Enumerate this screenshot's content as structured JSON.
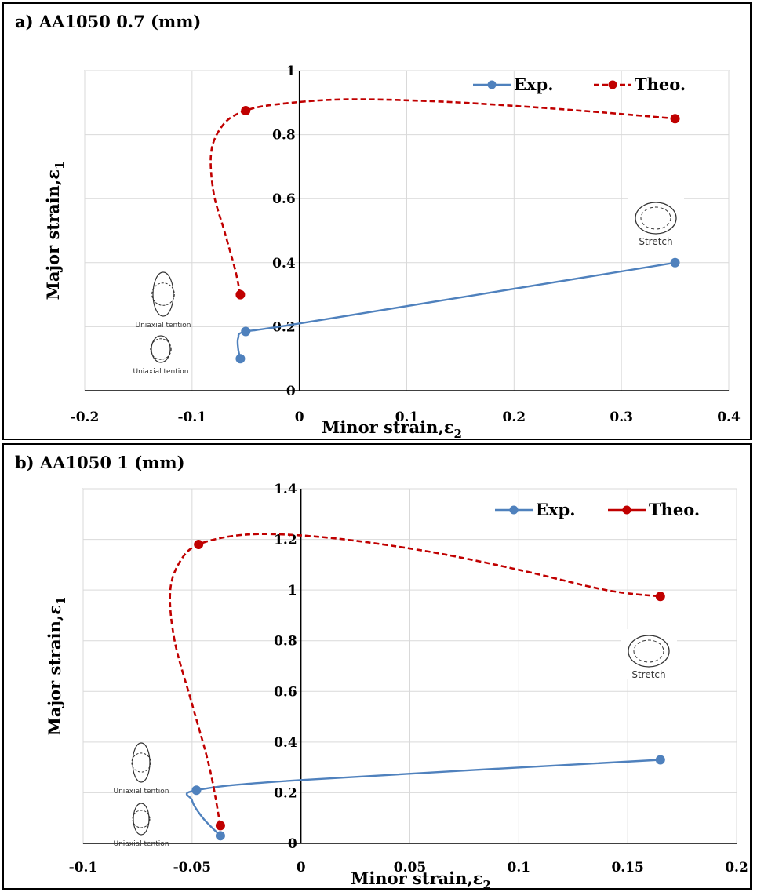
{
  "chart_data": [
    {
      "type": "line",
      "title": "a) AA1050 0.7 (mm)",
      "xlabel": "Minor strain,ε",
      "xlabel_sub": "2",
      "ylabel": "Major strain,ε",
      "ylabel_sub": "1",
      "xlim": [
        -0.2,
        0.4
      ],
      "ylim": [
        0,
        1
      ],
      "x_ticks": [
        -0.2,
        -0.1,
        0,
        0.1,
        0.2,
        0.3,
        0.4
      ],
      "x_tick_labels": [
        "-0.2",
        "-0.1",
        "0",
        "0.1",
        "0.2",
        "0.3",
        "0.4"
      ],
      "y_ticks": [
        0,
        0.2,
        0.4,
        0.6,
        0.8,
        1
      ],
      "y_tick_labels": [
        "0",
        "0.2",
        "0.4",
        "0.6",
        "0.8",
        "1"
      ],
      "grid": true,
      "legend_position": "top-right",
      "series": [
        {
          "name": "Exp.",
          "color": "#4f81bd",
          "dash": "solid",
          "markers": [
            {
              "x": -0.055,
              "y": 0.1
            },
            {
              "x": -0.05,
              "y": 0.185
            },
            {
              "x": 0.35,
              "y": 0.4
            }
          ],
          "curve": [
            [
              -0.055,
              0.1
            ],
            [
              -0.057,
              0.13
            ],
            [
              -0.057,
              0.165
            ],
            [
              -0.05,
              0.185
            ],
            [
              0.0,
              0.21
            ],
            [
              0.35,
              0.4
            ]
          ]
        },
        {
          "name": "Theo.",
          "color": "#c00000",
          "dash": "dashed",
          "markers": [
            {
              "x": -0.055,
              "y": 0.3
            },
            {
              "x": -0.05,
              "y": 0.875
            },
            {
              "x": 0.35,
              "y": 0.85
            }
          ],
          "curve": [
            [
              -0.055,
              0.3
            ],
            [
              -0.06,
              0.38
            ],
            [
              -0.07,
              0.5
            ],
            [
              -0.08,
              0.62
            ],
            [
              -0.082,
              0.75
            ],
            [
              -0.07,
              0.835
            ],
            [
              -0.05,
              0.875
            ],
            [
              -0.02,
              0.895
            ],
            [
              0.04,
              0.91
            ],
            [
              0.12,
              0.905
            ],
            [
              0.2,
              0.89
            ],
            [
              0.28,
              0.87
            ],
            [
              0.35,
              0.85
            ]
          ]
        }
      ],
      "annotations": [
        {
          "type": "stretch-icon",
          "label": "Stretch"
        },
        {
          "type": "uniaxial-icon",
          "label": "Uniaxial tention"
        },
        {
          "type": "uniaxial-icon",
          "label": "Uniaxial tention"
        }
      ]
    },
    {
      "type": "line",
      "title": "b) AA1050 1 (mm)",
      "xlabel": "Minor strain,ε",
      "xlabel_sub": "2",
      "ylabel": "Major strain,ε",
      "ylabel_sub": "1",
      "xlim": [
        -0.1,
        0.2
      ],
      "ylim": [
        0,
        1.4
      ],
      "x_ticks": [
        -0.1,
        -0.05,
        0,
        0.05,
        0.1,
        0.15,
        0.2
      ],
      "x_tick_labels": [
        "-0.1",
        "-0.05",
        "0",
        "0.05",
        "0.1",
        "0.15",
        "0.2"
      ],
      "y_ticks": [
        0,
        0.2,
        0.4,
        0.6,
        0.8,
        1,
        1.2,
        1.4
      ],
      "y_tick_labels": [
        "0",
        "0.2",
        "0.4",
        "0.6",
        "0.8",
        "1",
        "1.2",
        "1.4"
      ],
      "grid": true,
      "legend_position": "top-right",
      "series": [
        {
          "name": "Exp.",
          "color": "#4f81bd",
          "dash": "solid",
          "markers": [
            {
              "x": -0.037,
              "y": 0.03
            },
            {
              "x": -0.048,
              "y": 0.21
            },
            {
              "x": 0.165,
              "y": 0.33
            }
          ],
          "curve": [
            [
              -0.037,
              0.03
            ],
            [
              -0.045,
              0.1
            ],
            [
              -0.05,
              0.17
            ],
            [
              -0.048,
              0.21
            ],
            [
              0.0,
              0.25
            ],
            [
              0.165,
              0.33
            ]
          ]
        },
        {
          "name": "Theo.",
          "color": "#c00000",
          "dash": "dashed",
          "markers": [
            {
              "x": -0.037,
              "y": 0.07
            },
            {
              "x": -0.047,
              "y": 1.18
            },
            {
              "x": 0.165,
              "y": 0.975
            }
          ],
          "curve": [
            [
              -0.037,
              0.07
            ],
            [
              -0.042,
              0.3
            ],
            [
              -0.05,
              0.55
            ],
            [
              -0.058,
              0.8
            ],
            [
              -0.06,
              1.0
            ],
            [
              -0.055,
              1.12
            ],
            [
              -0.047,
              1.18
            ],
            [
              -0.03,
              1.215
            ],
            [
              -0.01,
              1.22
            ],
            [
              0.02,
              1.2
            ],
            [
              0.06,
              1.15
            ],
            [
              0.1,
              1.08
            ],
            [
              0.14,
              1.0
            ],
            [
              0.165,
              0.975
            ]
          ]
        }
      ],
      "annotations": [
        {
          "type": "stretch-icon",
          "label": "Stretch"
        },
        {
          "type": "uniaxial-icon",
          "label": "Uniaxial tention"
        },
        {
          "type": "uniaxial-icon",
          "label": "Uniaxial tention"
        }
      ]
    }
  ]
}
